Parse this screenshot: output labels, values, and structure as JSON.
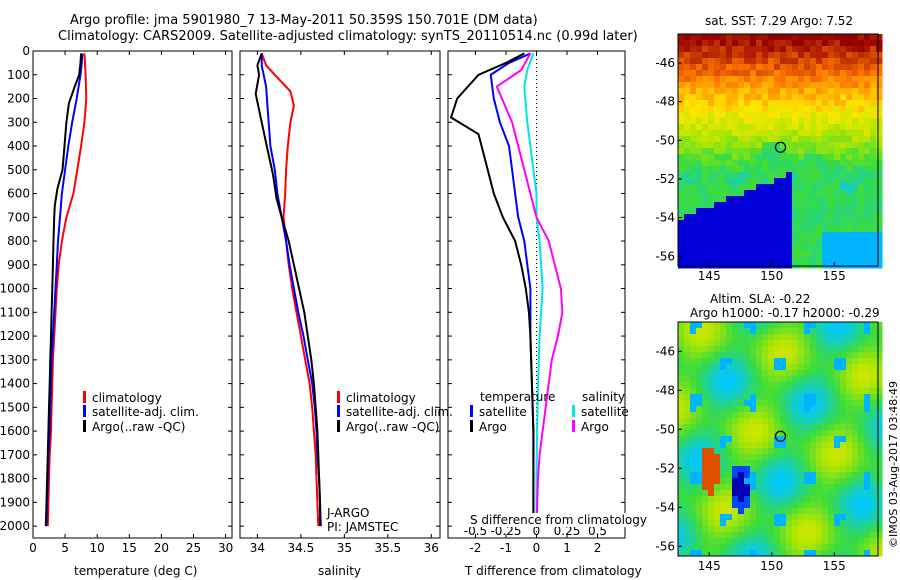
{
  "header": {
    "line1": "Argo profile: jma 5901980_7 13-May-2011 50.359S 150.701E (DM data)",
    "line2": "Climatology: CARS2009. Satellite-adjusted climatology: synTS_20110514.nc (0.99d later)"
  },
  "colors": {
    "climatology": "#ff0000",
    "satellite": "#0000ff",
    "argo": "#000000",
    "salinity_sat": "#00e5e5",
    "salinity_argo": "#ff00ff"
  },
  "panels": {
    "temperature": {
      "xlabel": "temperature (deg C)",
      "legend": [
        "climatology",
        "satellite-adj. clim.",
        "Argo(..raw -QC)"
      ]
    },
    "salinity": {
      "xlabel": "salinity",
      "legend": [
        "climatology",
        "satellite-adj. clim.",
        "Argo(..raw -QC)"
      ],
      "note1": "J-ARGO",
      "note2": "PI: JAMSTEC"
    },
    "difference": {
      "xlabel_bottom": "T difference from climatology",
      "xlabel_top": "S difference from climatology",
      "legend_temp_title": "temperature",
      "legend_sal_title": "salinity",
      "legend_temp": [
        "satellite",
        "Argo"
      ],
      "legend_sal": [
        "satellite",
        "Argo"
      ]
    },
    "sst_map": {
      "title": "sat. SST: 7.29 Argo: 7.52"
    },
    "sla_map": {
      "title1": "Altim. SLA: -0.22",
      "title2": "Argo h1000: -0.17 h2000: -0.29"
    }
  },
  "credit": "©IMOS 03-Aug-2017 03:48:49",
  "chart_data": [
    {
      "type": "line",
      "name": "temperature profile",
      "xlabel": "temperature (deg C)",
      "ylabel": "",
      "xlim": [
        0,
        31
      ],
      "ylim": [
        2050,
        0
      ],
      "xticks": [
        0,
        5,
        10,
        15,
        20,
        25,
        30
      ],
      "yticks": [
        0,
        100,
        200,
        300,
        400,
        500,
        600,
        700,
        800,
        900,
        1000,
        1100,
        1200,
        1300,
        1400,
        1500,
        1600,
        1700,
        1800,
        1900,
        2000
      ],
      "series": [
        {
          "name": "climatology",
          "color": "#ff0000",
          "points": [
            [
              8.0,
              10
            ],
            [
              8.1,
              50
            ],
            [
              8.2,
              100
            ],
            [
              8.3,
              200
            ],
            [
              8.0,
              300
            ],
            [
              7.5,
              400
            ],
            [
              6.9,
              500
            ],
            [
              6.3,
              600
            ],
            [
              5.2,
              700
            ],
            [
              4.5,
              800
            ],
            [
              4.0,
              900
            ],
            [
              3.7,
              1000
            ],
            [
              3.5,
              1100
            ],
            [
              3.3,
              1200
            ],
            [
              3.1,
              1300
            ],
            [
              3.0,
              1400
            ],
            [
              2.9,
              1500
            ],
            [
              2.8,
              1600
            ],
            [
              2.6,
              1700
            ],
            [
              2.5,
              1800
            ],
            [
              2.4,
              1900
            ],
            [
              2.3,
              2000
            ]
          ]
        },
        {
          "name": "satellite-adj. clim.",
          "color": "#0000ff",
          "points": [
            [
              7.7,
              10
            ],
            [
              7.6,
              50
            ],
            [
              7.4,
              100
            ],
            [
              6.8,
              200
            ],
            [
              6.1,
              300
            ],
            [
              5.5,
              400
            ],
            [
              5.0,
              500
            ],
            [
              4.5,
              600
            ],
            [
              4.2,
              700
            ],
            [
              3.9,
              800
            ],
            [
              3.7,
              900
            ],
            [
              3.5,
              1000
            ],
            [
              3.3,
              1100
            ],
            [
              3.1,
              1200
            ],
            [
              2.9,
              1300
            ],
            [
              2.8,
              1400
            ],
            [
              2.7,
              1500
            ],
            [
              2.6,
              1600
            ],
            [
              2.4,
              1700
            ],
            [
              2.3,
              1800
            ],
            [
              2.2,
              1900
            ],
            [
              2.1,
              2000
            ]
          ]
        },
        {
          "name": "Argo(..raw -QC)",
          "color": "#000000",
          "points": [
            [
              7.5,
              10
            ],
            [
              7.4,
              50
            ],
            [
              7.2,
              100
            ],
            [
              6.5,
              150
            ],
            [
              5.6,
              220
            ],
            [
              5.2,
              300
            ],
            [
              4.9,
              400
            ],
            [
              4.6,
              500
            ],
            [
              3.8,
              580
            ],
            [
              3.4,
              650
            ],
            [
              3.3,
              700
            ],
            [
              3.2,
              800
            ],
            [
              3.1,
              900
            ],
            [
              3.0,
              1000
            ],
            [
              2.9,
              1100
            ],
            [
              2.8,
              1200
            ],
            [
              2.7,
              1300
            ],
            [
              2.6,
              1400
            ],
            [
              2.5,
              1500
            ],
            [
              2.4,
              1600
            ],
            [
              2.3,
              1700
            ],
            [
              2.2,
              1800
            ],
            [
              2.1,
              1900
            ],
            [
              2.0,
              2000
            ]
          ]
        }
      ],
      "legend": "lower-right"
    },
    {
      "type": "line",
      "name": "salinity profile",
      "xlabel": "salinity",
      "ylabel": "",
      "xlim": [
        33.8,
        36.1
      ],
      "ylim": [
        2050,
        0
      ],
      "xticks": [
        34,
        34.5,
        35,
        35.5,
        36
      ],
      "series": [
        {
          "name": "climatology",
          "color": "#ff0000",
          "points": [
            [
              34.05,
              10
            ],
            [
              34.1,
              60
            ],
            [
              34.2,
              100
            ],
            [
              34.38,
              170
            ],
            [
              34.42,
              230
            ],
            [
              34.38,
              300
            ],
            [
              34.35,
              400
            ],
            [
              34.33,
              500
            ],
            [
              34.32,
              600
            ],
            [
              34.3,
              700
            ],
            [
              34.33,
              800
            ],
            [
              34.36,
              900
            ],
            [
              34.4,
              1000
            ],
            [
              34.45,
              1100
            ],
            [
              34.5,
              1200
            ],
            [
              34.55,
              1300
            ],
            [
              34.6,
              1400
            ],
            [
              34.63,
              1500
            ],
            [
              34.65,
              1600
            ],
            [
              34.67,
              1700
            ],
            [
              34.68,
              1800
            ],
            [
              34.69,
              1900
            ],
            [
              34.7,
              2000
            ]
          ]
        },
        {
          "name": "satellite-adj. clim.",
          "color": "#0000ff",
          "points": [
            [
              34.05,
              10
            ],
            [
              34.05,
              60
            ],
            [
              34.1,
              150
            ],
            [
              34.12,
              250
            ],
            [
              34.15,
              400
            ],
            [
              34.2,
              500
            ],
            [
              34.23,
              600
            ],
            [
              34.28,
              700
            ],
            [
              34.33,
              800
            ],
            [
              34.37,
              900
            ],
            [
              34.42,
              1000
            ],
            [
              34.47,
              1100
            ],
            [
              34.53,
              1200
            ],
            [
              34.58,
              1300
            ],
            [
              34.63,
              1400
            ],
            [
              34.66,
              1500
            ],
            [
              34.68,
              1600
            ],
            [
              34.69,
              1700
            ],
            [
              34.71,
              1800
            ],
            [
              34.72,
              1900
            ],
            [
              34.73,
              2000
            ]
          ]
        },
        {
          "name": "Argo(..raw -QC)",
          "color": "#000000",
          "points": [
            [
              34.05,
              10
            ],
            [
              34.0,
              60
            ],
            [
              34.02,
              100
            ],
            [
              33.98,
              180
            ],
            [
              34.05,
              300
            ],
            [
              34.12,
              420
            ],
            [
              34.18,
              520
            ],
            [
              34.22,
              620
            ],
            [
              34.28,
              700
            ],
            [
              34.36,
              800
            ],
            [
              34.42,
              900
            ],
            [
              34.48,
              1000
            ],
            [
              34.54,
              1100
            ],
            [
              34.58,
              1200
            ],
            [
              34.62,
              1300
            ],
            [
              34.65,
              1400
            ],
            [
              34.67,
              1500
            ],
            [
              34.69,
              1600
            ],
            [
              34.7,
              1700
            ],
            [
              34.71,
              1800
            ],
            [
              34.72,
              1900
            ],
            [
              34.72,
              2000
            ]
          ]
        }
      ],
      "legend": "lower-right"
    },
    {
      "type": "line",
      "name": "difference from climatology",
      "xlabel": "T difference from climatology",
      "xlabel_top": "S difference from climatology",
      "xlim": [
        -2.9,
        2.9
      ],
      "ylim": [
        2050,
        0
      ],
      "xticks": [
        -2,
        -1,
        0,
        1,
        2
      ],
      "xticks_top": [
        -0.5,
        -0.25,
        0,
        0.25,
        0.5
      ],
      "series": [
        {
          "name": "temperature satellite",
          "color": "#0000ff",
          "points": [
            [
              -0.2,
              10
            ],
            [
              -0.9,
              50
            ],
            [
              -1.5,
              100
            ],
            [
              -1.4,
              200
            ],
            [
              -1.2,
              300
            ],
            [
              -0.9,
              400
            ],
            [
              -0.8,
              500
            ],
            [
              -0.7,
              600
            ],
            [
              -0.6,
              700
            ],
            [
              -0.4,
              800
            ],
            [
              -0.3,
              900
            ],
            [
              -0.2,
              1000
            ],
            [
              -0.2,
              1100
            ],
            [
              -0.2,
              1200
            ],
            [
              -0.15,
              1400
            ],
            [
              -0.1,
              1600
            ],
            [
              -0.1,
              1800
            ],
            [
              -0.1,
              2000
            ]
          ]
        },
        {
          "name": "temperature Argo",
          "color": "#000000",
          "points": [
            [
              -0.4,
              10
            ],
            [
              -1.0,
              50
            ],
            [
              -1.9,
              100
            ],
            [
              -2.6,
              200
            ],
            [
              -2.8,
              280
            ],
            [
              -1.9,
              350
            ],
            [
              -1.6,
              500
            ],
            [
              -1.4,
              600
            ],
            [
              -1.1,
              700
            ],
            [
              -0.7,
              800
            ],
            [
              -0.5,
              900
            ],
            [
              -0.35,
              1000
            ],
            [
              -0.25,
              1100
            ],
            [
              -0.2,
              1200
            ],
            [
              -0.15,
              1400
            ],
            [
              -0.1,
              1600
            ],
            [
              -0.1,
              1800
            ],
            [
              -0.1,
              2000
            ]
          ]
        },
        {
          "name": "salinity satellite",
          "color": "#00e5e5",
          "points": [
            [
              -0.1,
              10
            ],
            [
              -0.3,
              80
            ],
            [
              -0.4,
              150
            ],
            [
              -0.3,
              300
            ],
            [
              -0.2,
              400
            ],
            [
              -0.1,
              500
            ],
            [
              0.0,
              600
            ],
            [
              0.0,
              700
            ],
            [
              0.1,
              800
            ],
            [
              0.15,
              900
            ],
            [
              0.2,
              1000
            ],
            [
              0.15,
              1100
            ],
            [
              0.1,
              1200
            ],
            [
              0.05,
              1400
            ],
            [
              0.02,
              1600
            ],
            [
              0.0,
              1800
            ],
            [
              0.0,
              2000
            ]
          ]
        },
        {
          "name": "salinity Argo",
          "color": "#ff00ff",
          "points": [
            [
              -0.2,
              10
            ],
            [
              -0.5,
              80
            ],
            [
              -1.3,
              150
            ],
            [
              -0.8,
              300
            ],
            [
              -0.6,
              400
            ],
            [
              -0.4,
              500
            ],
            [
              -0.2,
              600
            ],
            [
              0.0,
              700
            ],
            [
              0.4,
              800
            ],
            [
              0.6,
              900
            ],
            [
              0.8,
              1000
            ],
            [
              0.85,
              1100
            ],
            [
              0.7,
              1200
            ],
            [
              0.5,
              1300
            ],
            [
              0.4,
              1400
            ],
            [
              0.3,
              1500
            ],
            [
              0.2,
              1600
            ],
            [
              0.1,
              1700
            ],
            [
              0.05,
              1800
            ],
            [
              0.0,
              2000
            ]
          ]
        }
      ],
      "legend": "lower-center"
    },
    {
      "type": "heatmap",
      "name": "sat. SST",
      "title": "sat. SST: 7.29 Argo: 7.52",
      "xlim": [
        142.5,
        158.5
      ],
      "ylim": [
        -56.5,
        -44.5
      ],
      "xticks": [
        145,
        150,
        155
      ],
      "yticks": [
        -46,
        -48,
        -50,
        -52,
        -54,
        -56
      ],
      "marker": [
        150.7,
        -50.36
      ]
    },
    {
      "type": "heatmap",
      "name": "Altim. SLA",
      "title": "Altim. SLA: -0.22",
      "subtitle": "Argo h1000: -0.17 h2000: -0.29",
      "xlim": [
        142.5,
        158.5
      ],
      "ylim": [
        -56.5,
        -44.5
      ],
      "xticks": [
        145,
        150,
        155
      ],
      "yticks": [
        -46,
        -48,
        -50,
        -52,
        -54,
        -56
      ],
      "marker": [
        150.7,
        -50.36
      ]
    }
  ]
}
